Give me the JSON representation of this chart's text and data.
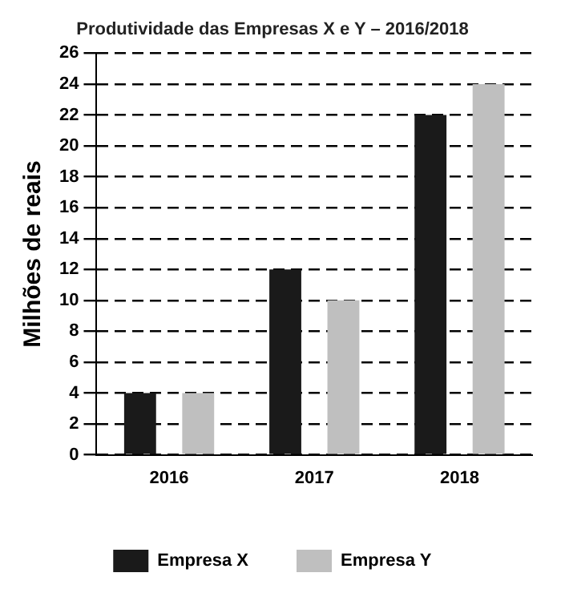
{
  "chart_data": {
    "type": "bar",
    "title": "Produtividade das Empresas X e Y – 2016/2018",
    "ylabel": "Milhões de reais",
    "categories": [
      "2016",
      "2017",
      "2018"
    ],
    "series": [
      {
        "name": "Empresa X",
        "color": "#1a1a1a",
        "values": [
          4,
          12,
          22
        ]
      },
      {
        "name": "Empresa Y",
        "color": "#bfbfbf",
        "values": [
          4,
          10,
          24
        ]
      }
    ],
    "ylim": [
      0,
      26
    ],
    "yticks": [
      0,
      2,
      4,
      6,
      8,
      10,
      12,
      14,
      16,
      18,
      20,
      22,
      24,
      26
    ],
    "grid": "y",
    "legend": "bottom"
  }
}
